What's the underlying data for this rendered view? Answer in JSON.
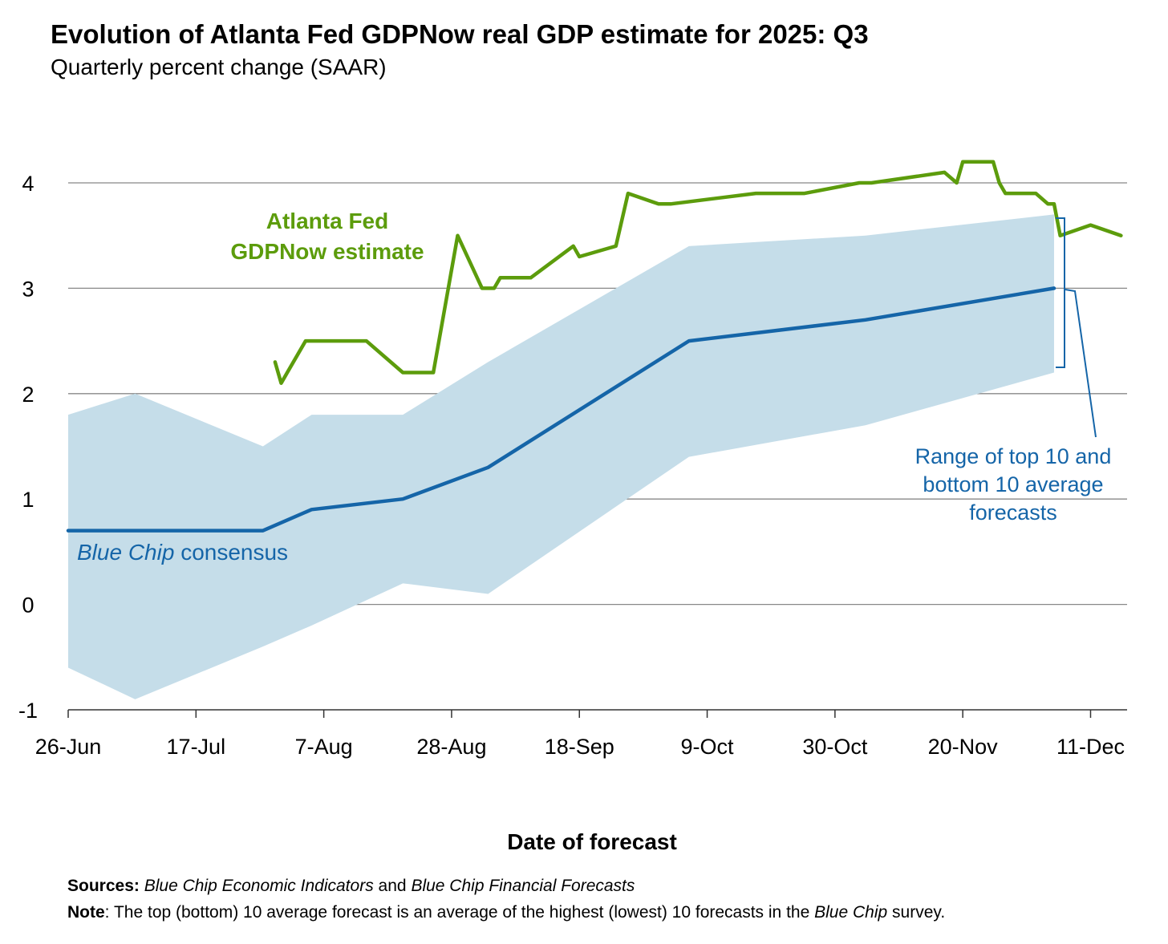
{
  "title": "Evolution of Atlanta Fed GDPNow real GDP estimate for 2025: Q3",
  "subtitle": "Quarterly percent change (SAAR)",
  "colors": {
    "gdpnow": "#5c9c0c",
    "bluechip": "#1565a8",
    "range": "#c5dde9",
    "gridline": "#888888"
  },
  "footer": {
    "sources_label": "Sources:",
    "sources_pub1": "Blue Chip Economic Indicators",
    "sources_and": "and",
    "sources_pub2": "Blue Chip Financial Forecasts",
    "note_label": "Note",
    "note_text": ": The top (bottom) 10 average forecast is an average of the highest (lowest) 10 forecasts in the",
    "note_italic": "Blue Chip",
    "note_end": "survey."
  },
  "chart_data": {
    "type": "line",
    "xlabel": "Date of forecast",
    "ylabel": "",
    "x_start": "2025-06-26",
    "x_end": "2025-12-17",
    "xticks": [
      "26-Jun",
      "17-Jul",
      "7-Aug",
      "28-Aug",
      "18-Sep",
      "9-Oct",
      "30-Oct",
      "20-Nov",
      "11-Dec"
    ],
    "xtick_dates": [
      "2025-06-26",
      "2025-07-17",
      "2025-08-07",
      "2025-08-28",
      "2025-09-18",
      "2025-10-09",
      "2025-10-30",
      "2025-11-20",
      "2025-12-11"
    ],
    "yticks": [
      -1,
      0,
      1,
      2,
      3,
      4
    ],
    "ylim": [
      -1,
      4
    ],
    "grid": true,
    "annotations": {
      "gdpnow_label": [
        "Atlanta Fed",
        "GDPNow estimate"
      ],
      "bluechip_label_italic": "Blue Chip",
      "bluechip_label_rest": "consensus",
      "range_label": [
        "Range of top 10 and",
        "bottom 10 average",
        "forecasts"
      ]
    },
    "series": [
      {
        "name": "Atlanta Fed GDPNow estimate",
        "points": [
          [
            "2025-07-30",
            2.3
          ],
          [
            "2025-07-31",
            2.1
          ],
          [
            "2025-08-01",
            2.2
          ],
          [
            "2025-08-04",
            2.5
          ],
          [
            "2025-08-14",
            2.5
          ],
          [
            "2025-08-20",
            2.2
          ],
          [
            "2025-08-25",
            2.2
          ],
          [
            "2025-08-29",
            3.5
          ],
          [
            "2025-09-02",
            3.0
          ],
          [
            "2025-09-04",
            3.0
          ],
          [
            "2025-09-05",
            3.1
          ],
          [
            "2025-09-10",
            3.1
          ],
          [
            "2025-09-17",
            3.4
          ],
          [
            "2025-09-18",
            3.3
          ],
          [
            "2025-09-24",
            3.4
          ],
          [
            "2025-09-26",
            3.9
          ],
          [
            "2025-10-01",
            3.8
          ],
          [
            "2025-10-03",
            3.8
          ],
          [
            "2025-10-10",
            3.85
          ],
          [
            "2025-10-17",
            3.9
          ],
          [
            "2025-10-25",
            3.9
          ],
          [
            "2025-11-03",
            4.0
          ],
          [
            "2025-11-05",
            4.0
          ],
          [
            "2025-11-17",
            4.1
          ],
          [
            "2025-11-19",
            4.0
          ],
          [
            "2025-11-20",
            4.2
          ],
          [
            "2025-11-25",
            4.2
          ],
          [
            "2025-11-26",
            4.0
          ],
          [
            "2025-11-27",
            3.9
          ],
          [
            "2025-12-02",
            3.9
          ],
          [
            "2025-12-04",
            3.8
          ],
          [
            "2025-12-05",
            3.8
          ],
          [
            "2025-12-06",
            3.5
          ],
          [
            "2025-12-11",
            3.6
          ],
          [
            "2025-12-16",
            3.5
          ]
        ]
      },
      {
        "name": "Blue Chip consensus",
        "points": [
          [
            "2025-06-26",
            0.7
          ],
          [
            "2025-07-07",
            0.7
          ],
          [
            "2025-07-28",
            0.7
          ],
          [
            "2025-08-05",
            0.9
          ],
          [
            "2025-08-20",
            1.0
          ],
          [
            "2025-09-03",
            1.3
          ],
          [
            "2025-10-06",
            2.5
          ],
          [
            "2025-11-04",
            2.7
          ],
          [
            "2025-12-05",
            3.0
          ]
        ]
      },
      {
        "name": "Range of top 10 and bottom 10 average forecasts",
        "type": "band",
        "points": [
          [
            "2025-06-26",
            -0.6,
            1.8
          ],
          [
            "2025-07-07",
            -0.9,
            2.0
          ],
          [
            "2025-07-28",
            -0.4,
            1.5
          ],
          [
            "2025-08-05",
            -0.2,
            1.8
          ],
          [
            "2025-08-20",
            0.2,
            1.8
          ],
          [
            "2025-09-03",
            0.1,
            2.3
          ],
          [
            "2025-10-06",
            1.4,
            3.4
          ],
          [
            "2025-11-04",
            1.7,
            3.5
          ],
          [
            "2025-12-05",
            2.2,
            3.7
          ]
        ]
      }
    ]
  }
}
